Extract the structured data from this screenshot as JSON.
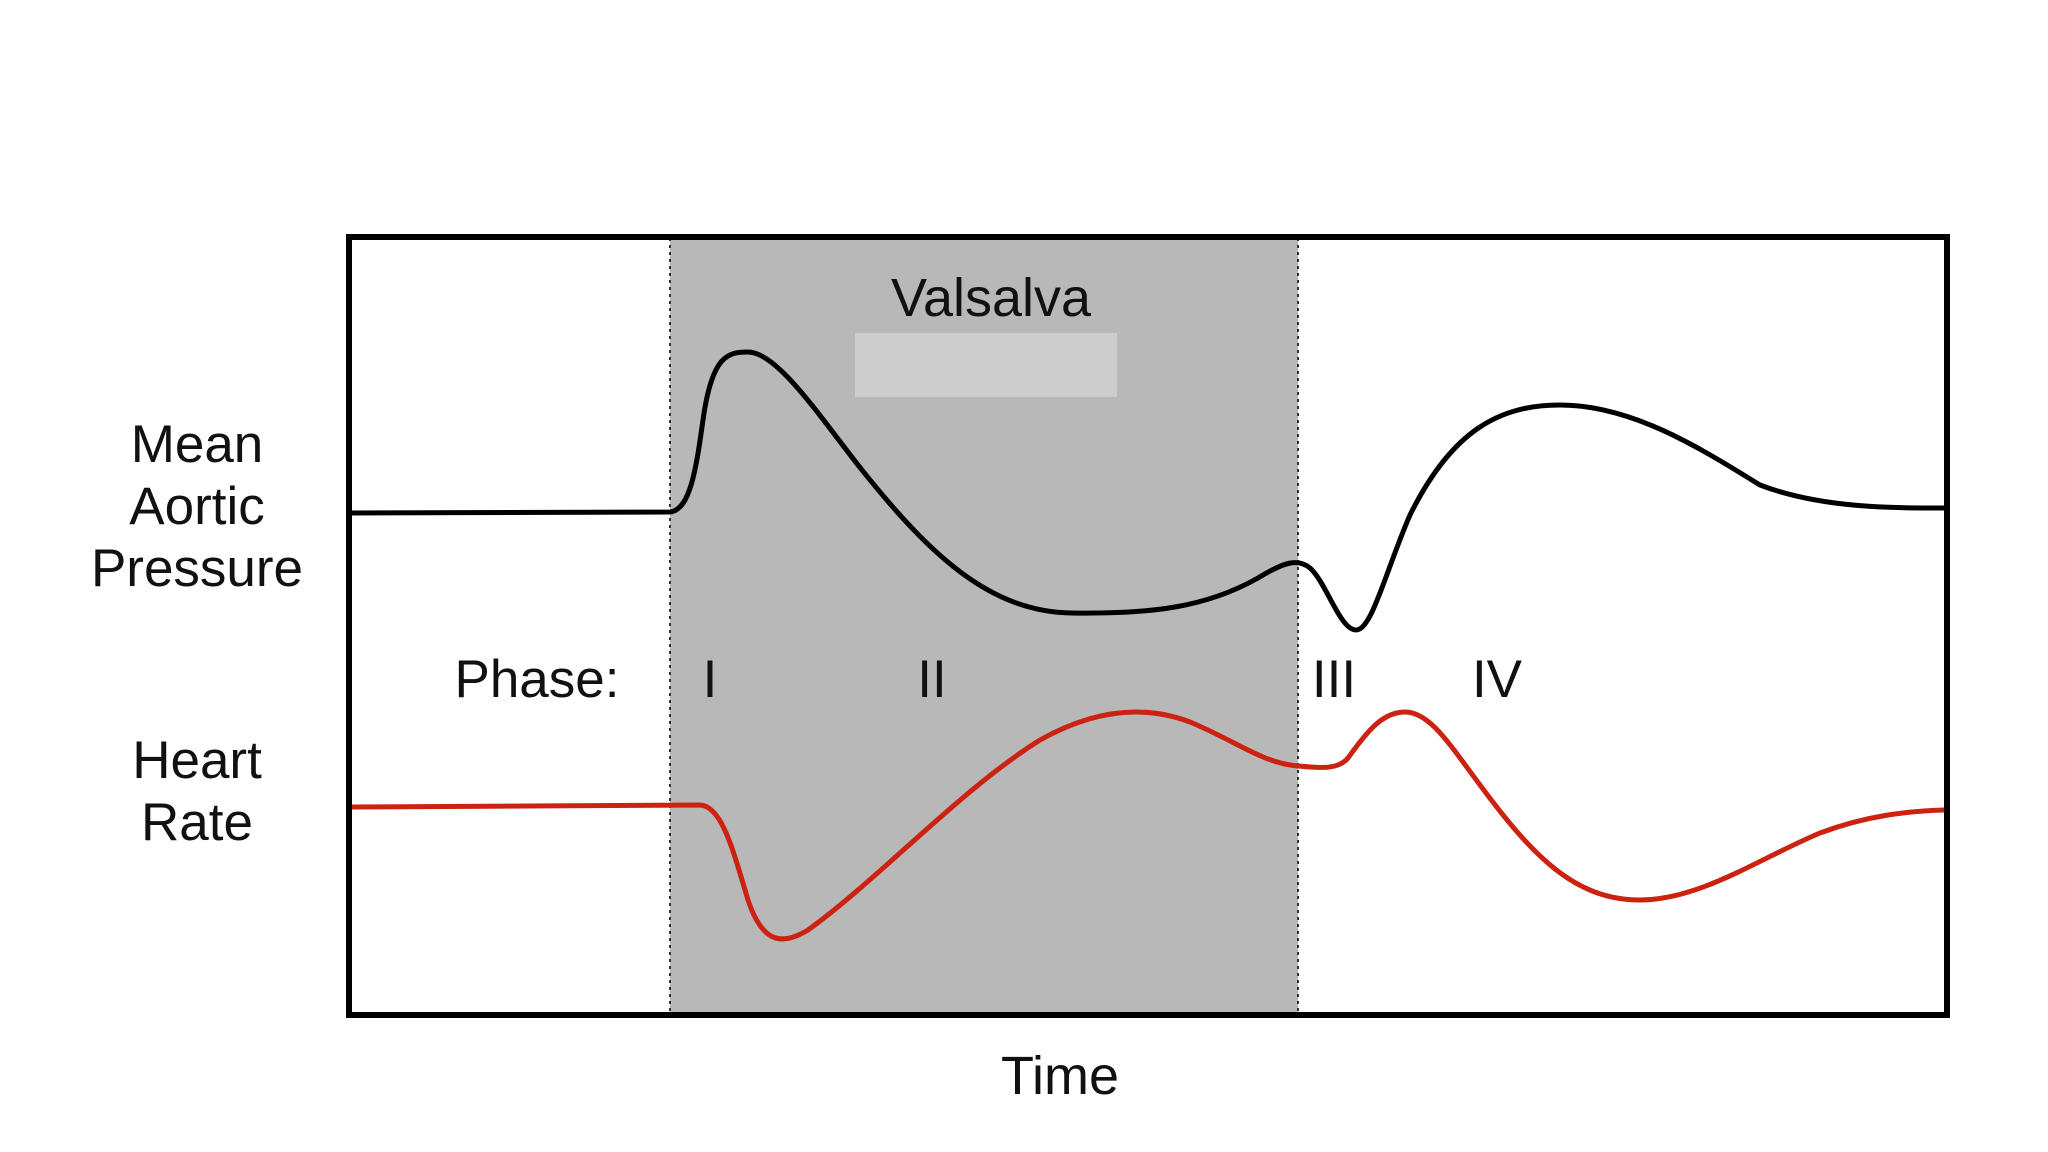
{
  "labels": {
    "valsalva": "Valsalva",
    "pressure_line1": "Mean",
    "pressure_line2": "Aortic",
    "pressure_line3": "Pressure",
    "phase": "Phase:",
    "phase_1": "I",
    "phase_2": "II",
    "phase_3": "III",
    "phase_4": "IV",
    "heart_rate_line1": "Heart",
    "heart_rate_line2": "Rate",
    "x_axis": "Time"
  },
  "colors": {
    "frame": "#000000",
    "valsalva_band": "#b8b8b8",
    "valsalva_highlight": "#cdcdcd",
    "pressure_curve": "#000000",
    "heart_rate_curve": "#cc2211",
    "text": "#111111"
  }
}
